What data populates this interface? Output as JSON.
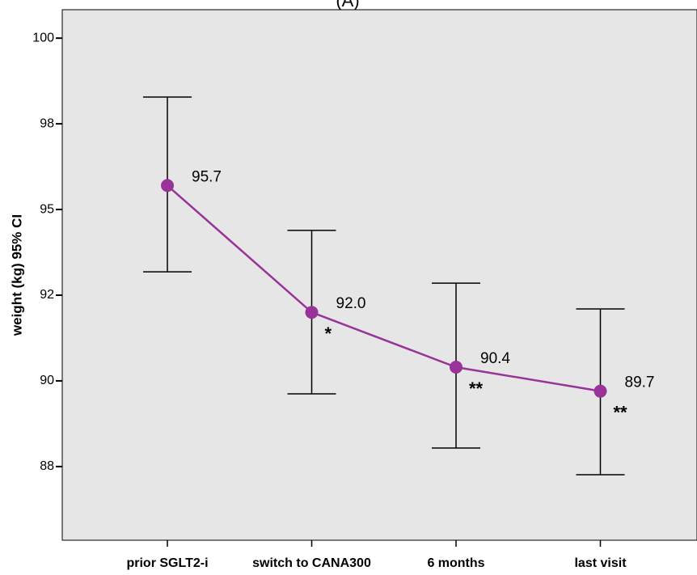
{
  "chart_data": {
    "type": "errorline",
    "title": "(A)",
    "y_label": "weight (kg) 95% CI",
    "categories": [
      "prior SGLT2-i",
      "switch to CANA300",
      "6 months",
      "last visit"
    ],
    "values": [
      95.7,
      92.0,
      90.4,
      89.7
    ],
    "value_labels": [
      "95.7",
      "92.0",
      "90.4",
      "89.7"
    ],
    "lower": [
      93.18,
      89.62,
      88.04,
      87.26
    ],
    "upper": [
      98.28,
      94.39,
      92.85,
      92.1
    ],
    "annotations": [
      null,
      "*",
      "**",
      "**"
    ],
    "color": "#993399",
    "ylim": [
      85.35,
      100.83
    ],
    "yticks": [
      {
        "value": 87.5,
        "label": "88"
      },
      90,
      {
        "value": 92.5,
        "label": "92"
      },
      95,
      {
        "value": 97.5,
        "label": "98"
      },
      100
    ]
  }
}
